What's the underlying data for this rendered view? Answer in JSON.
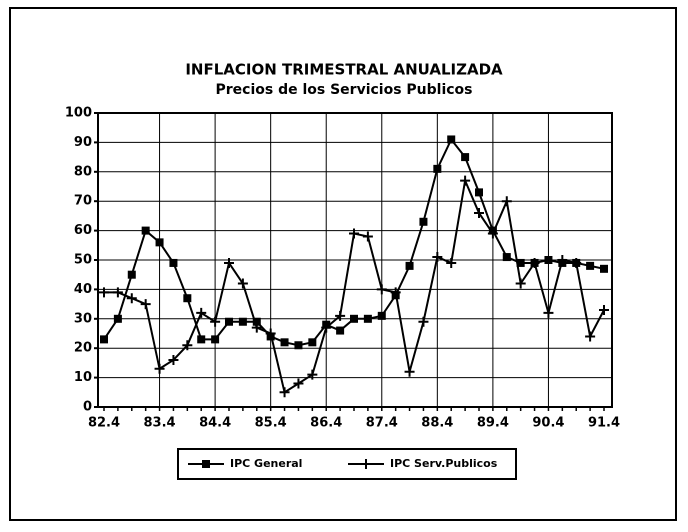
{
  "chart_data": {
    "type": "line",
    "title": "INFLACION TRIMESTRAL ANUALIZADA",
    "subtitle": "Precios de los Servicios Publicos",
    "categories": [
      "82.4",
      null,
      null,
      null,
      "83.4",
      null,
      null,
      null,
      "84.4",
      null,
      null,
      null,
      "85.4",
      null,
      null,
      null,
      "86.4",
      null,
      null,
      null,
      "87.4",
      null,
      null,
      null,
      "88.4",
      null,
      null,
      null,
      "89.4",
      null,
      null,
      null,
      "90.4",
      null,
      null,
      null,
      "91.4"
    ],
    "series": [
      {
        "name": "IPC General",
        "color": "#000000",
        "marker": "square",
        "values": [
          23,
          30,
          45,
          60,
          56,
          49,
          37,
          23,
          23,
          29,
          29,
          29,
          24,
          22,
          21,
          22,
          28,
          26,
          30,
          30,
          31,
          38,
          48,
          63,
          81,
          91,
          85,
          73,
          60,
          51,
          49,
          49,
          50,
          49,
          49,
          48,
          47
        ]
      },
      {
        "name": "IPC Serv.Publicos",
        "color": "#000000",
        "marker": "plus",
        "values": [
          39,
          39,
          37,
          35,
          13,
          16,
          21,
          32,
          29,
          49,
          42,
          27,
          25,
          5,
          8,
          11,
          27,
          31,
          59,
          58,
          40,
          39,
          12,
          29,
          51,
          49,
          77,
          66,
          59,
          70,
          42,
          49,
          32,
          50,
          49,
          24,
          33
        ]
      }
    ],
    "ylim": [
      0,
      100
    ],
    "yticks": [
      0,
      10,
      20,
      30,
      40,
      50,
      60,
      70,
      80,
      90,
      100
    ],
    "grid": true,
    "legend": "bottom"
  }
}
